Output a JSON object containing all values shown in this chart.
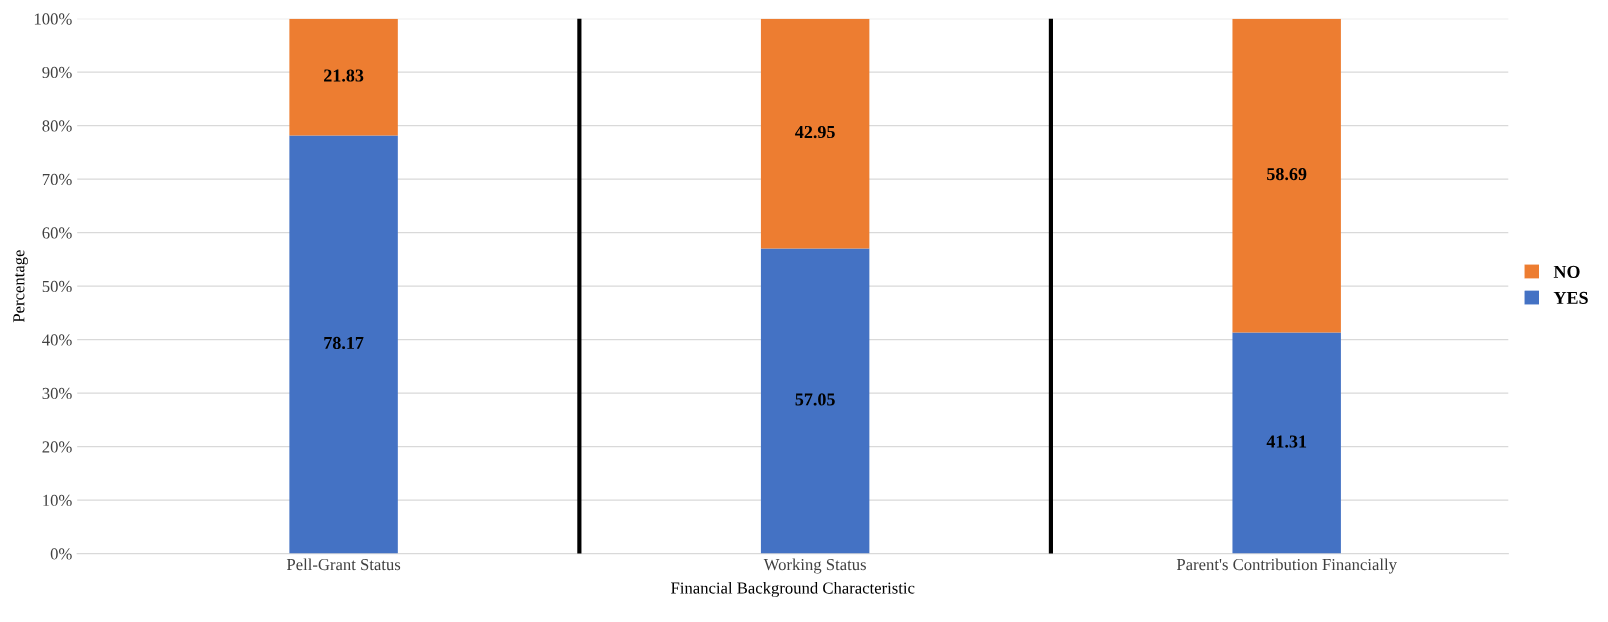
{
  "chart_data": {
    "type": "bar",
    "stacked": true,
    "xlabel": "Financial Background Characteristic",
    "ylabel": "Percentage",
    "categories": [
      "Pell-Grant Status",
      "Working Status",
      "Parent's Contribution Financially"
    ],
    "series": [
      {
        "name": "YES",
        "color": "#4472c4",
        "values": [
          78.17,
          57.05,
          41.31
        ]
      },
      {
        "name": "NO",
        "color": "#ed7d31",
        "values": [
          21.83,
          42.95,
          58.69
        ]
      }
    ],
    "data_labels": true,
    "ylim": [
      0,
      100
    ],
    "yticks": [
      {
        "value": 0,
        "label": "0%"
      },
      {
        "value": 10,
        "label": "10%"
      },
      {
        "value": 20,
        "label": "20%"
      },
      {
        "value": 30,
        "label": "30%"
      },
      {
        "value": 40,
        "label": "40%"
      },
      {
        "value": 50,
        "label": "50%"
      },
      {
        "value": 60,
        "label": "60%"
      },
      {
        "value": 70,
        "label": "70%"
      },
      {
        "value": 80,
        "label": "80%"
      },
      {
        "value": 90,
        "label": "90%"
      },
      {
        "value": 100,
        "label": "100%"
      }
    ],
    "grid": "y",
    "legend": "right"
  }
}
